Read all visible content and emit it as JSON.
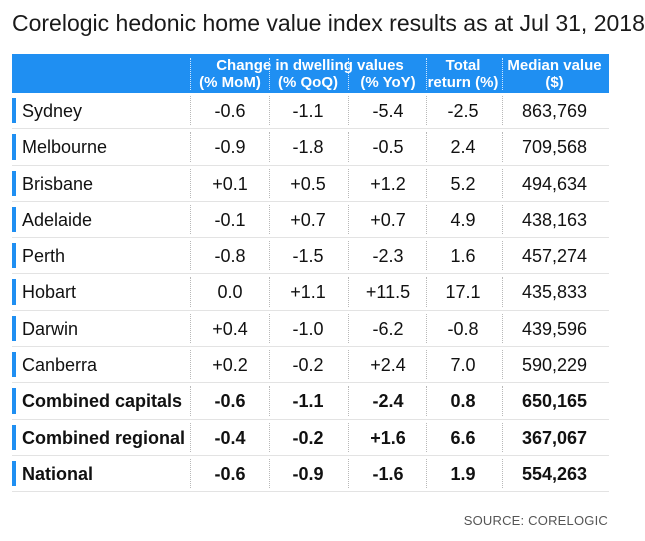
{
  "title": "Corelogic hedonic home value index results as at Jul 31, 2018",
  "source": "SOURCE: CORELOGIC",
  "colors": {
    "header_bg": "#1f8ff2",
    "row_bar": "#1f8ff2"
  },
  "chart_data": {
    "type": "table",
    "title": "Corelogic hedonic home value index results as at Jul 31, 2018",
    "group_header": "Change in dwelling values",
    "columns": [
      "(% MoM)",
      "(% QoQ)",
      "(% YoY)",
      "Total return (%)",
      "Median value ($)"
    ],
    "total_header": [
      "Total",
      "return (%)"
    ],
    "median_header": [
      "Median value",
      "($)"
    ],
    "rows": [
      {
        "name": "Sydney",
        "values": [
          "-0.6",
          "-1.1",
          "-5.4",
          "-2.5",
          "863,769"
        ],
        "bold": false
      },
      {
        "name": "Melbourne",
        "values": [
          "-0.9",
          "-1.8",
          "-0.5",
          "2.4",
          "709,568"
        ],
        "bold": false
      },
      {
        "name": "Brisbane",
        "values": [
          "+0.1",
          "+0.5",
          "+1.2",
          "5.2",
          "494,634"
        ],
        "bold": false
      },
      {
        "name": "Adelaide",
        "values": [
          "-0.1",
          "+0.7",
          "+0.7",
          "4.9",
          "438,163"
        ],
        "bold": false
      },
      {
        "name": "Perth",
        "values": [
          "-0.8",
          "-1.5",
          "-2.3",
          "1.6",
          "457,274"
        ],
        "bold": false
      },
      {
        "name": "Hobart",
        "values": [
          "0.0",
          "+1.1",
          "+11.5",
          "17.1",
          "435,833"
        ],
        "bold": false
      },
      {
        "name": "Darwin",
        "values": [
          "+0.4",
          "-1.0",
          "-6.2",
          "-0.8",
          "439,596"
        ],
        "bold": false
      },
      {
        "name": "Canberra",
        "values": [
          "+0.2",
          "-0.2",
          "+2.4",
          "7.0",
          "590,229"
        ],
        "bold": false
      },
      {
        "name": "Combined capitals",
        "values": [
          "-0.6",
          "-1.1",
          "-2.4",
          "0.8",
          "650,165"
        ],
        "bold": true
      },
      {
        "name": "Combined regional",
        "values": [
          "-0.4",
          "-0.2",
          "+1.6",
          "6.6",
          "367,067"
        ],
        "bold": true
      },
      {
        "name": "National",
        "values": [
          "-0.6",
          "-0.9",
          "-1.6",
          "1.9",
          "554,263"
        ],
        "bold": true
      }
    ]
  }
}
